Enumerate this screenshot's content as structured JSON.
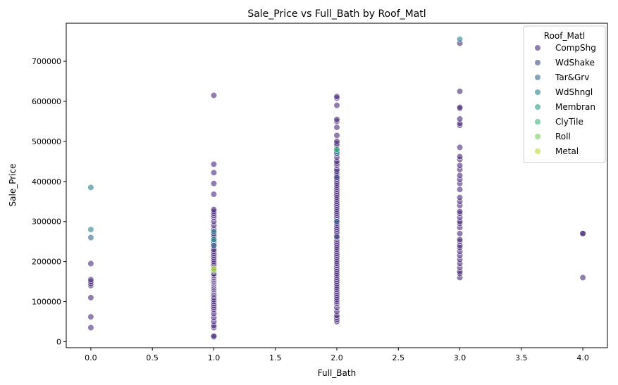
{
  "chart_data": {
    "type": "scatter",
    "title": "Sale_Price vs Full_Bath by Roof_Matl",
    "xlabel": "Full_Bath",
    "ylabel": "Sale_Price",
    "xlim": [
      -0.2,
      4.2
    ],
    "ylim": [
      -15000,
      795000
    ],
    "xticks": [
      0.0,
      0.5,
      1.0,
      1.5,
      2.0,
      2.5,
      3.0,
      3.5,
      4.0
    ],
    "xtick_labels": [
      "0.0",
      "0.5",
      "1.0",
      "1.5",
      "2.0",
      "2.5",
      "3.0",
      "3.5",
      "4.0"
    ],
    "yticks": [
      0,
      100000,
      200000,
      300000,
      400000,
      500000,
      600000,
      700000
    ],
    "ytick_labels": [
      "0",
      "100000",
      "200000",
      "300000",
      "400000",
      "500000",
      "600000",
      "700000"
    ],
    "grid": false,
    "legend": {
      "title": "Roof_Matl",
      "placement": "top-right"
    },
    "series": [
      {
        "name": "CompShg",
        "color": "#482878",
        "points": [
          [
            0,
            35000
          ],
          [
            0,
            62000
          ],
          [
            0,
            110000
          ],
          [
            0,
            140000
          ],
          [
            0,
            145000
          ],
          [
            0,
            150000
          ],
          [
            0,
            155000
          ],
          [
            0,
            195000
          ],
          [
            1,
            12000
          ],
          [
            1,
            14000
          ],
          [
            1,
            35000
          ],
          [
            1,
            40000
          ],
          [
            1,
            50000
          ],
          [
            1,
            60000
          ],
          [
            1,
            70000
          ],
          [
            1,
            80000
          ],
          [
            1,
            85000
          ],
          [
            1,
            90000
          ],
          [
            1,
            95000
          ],
          [
            1,
            100000
          ],
          [
            1,
            105000
          ],
          [
            1,
            110000
          ],
          [
            1,
            115000
          ],
          [
            1,
            118000
          ],
          [
            1,
            122000
          ],
          [
            1,
            125000
          ],
          [
            1,
            128000
          ],
          [
            1,
            130000
          ],
          [
            1,
            133000
          ],
          [
            1,
            135000
          ],
          [
            1,
            138000
          ],
          [
            1,
            140000
          ],
          [
            1,
            143000
          ],
          [
            1,
            145000
          ],
          [
            1,
            148000
          ],
          [
            1,
            150000
          ],
          [
            1,
            153000
          ],
          [
            1,
            155000
          ],
          [
            1,
            158000
          ],
          [
            1,
            160000
          ],
          [
            1,
            163000
          ],
          [
            1,
            165000
          ],
          [
            1,
            168000
          ],
          [
            1,
            170000
          ],
          [
            1,
            175000
          ],
          [
            1,
            180000
          ],
          [
            1,
            185000
          ],
          [
            1,
            190000
          ],
          [
            1,
            195000
          ],
          [
            1,
            200000
          ],
          [
            1,
            205000
          ],
          [
            1,
            210000
          ],
          [
            1,
            215000
          ],
          [
            1,
            220000
          ],
          [
            1,
            225000
          ],
          [
            1,
            230000
          ],
          [
            1,
            240000
          ],
          [
            1,
            245000
          ],
          [
            1,
            255000
          ],
          [
            1,
            260000
          ],
          [
            1,
            265000
          ],
          [
            1,
            270000
          ],
          [
            1,
            280000
          ],
          [
            1,
            290000
          ],
          [
            1,
            300000
          ],
          [
            1,
            310000
          ],
          [
            1,
            315000
          ],
          [
            1,
            320000
          ],
          [
            1,
            325000
          ],
          [
            1,
            330000
          ],
          [
            1,
            368000
          ],
          [
            1,
            395000
          ],
          [
            1,
            422000
          ],
          [
            1,
            443000
          ],
          [
            1,
            615000
          ],
          [
            2,
            50000
          ],
          [
            2,
            55000
          ],
          [
            2,
            60000
          ],
          [
            2,
            65000
          ],
          [
            2,
            75000
          ],
          [
            2,
            85000
          ],
          [
            2,
            95000
          ],
          [
            2,
            100000
          ],
          [
            2,
            105000
          ],
          [
            2,
            110000
          ],
          [
            2,
            115000
          ],
          [
            2,
            120000
          ],
          [
            2,
            125000
          ],
          [
            2,
            130000
          ],
          [
            2,
            135000
          ],
          [
            2,
            140000
          ],
          [
            2,
            145000
          ],
          [
            2,
            150000
          ],
          [
            2,
            155000
          ],
          [
            2,
            160000
          ],
          [
            2,
            165000
          ],
          [
            2,
            170000
          ],
          [
            2,
            175000
          ],
          [
            2,
            180000
          ],
          [
            2,
            185000
          ],
          [
            2,
            190000
          ],
          [
            2,
            195000
          ],
          [
            2,
            200000
          ],
          [
            2,
            205000
          ],
          [
            2,
            210000
          ],
          [
            2,
            215000
          ],
          [
            2,
            220000
          ],
          [
            2,
            225000
          ],
          [
            2,
            230000
          ],
          [
            2,
            235000
          ],
          [
            2,
            240000
          ],
          [
            2,
            245000
          ],
          [
            2,
            250000
          ],
          [
            2,
            255000
          ],
          [
            2,
            260000
          ],
          [
            2,
            265000
          ],
          [
            2,
            270000
          ],
          [
            2,
            275000
          ],
          [
            2,
            280000
          ],
          [
            2,
            285000
          ],
          [
            2,
            290000
          ],
          [
            2,
            295000
          ],
          [
            2,
            300000
          ],
          [
            2,
            305000
          ],
          [
            2,
            310000
          ],
          [
            2,
            315000
          ],
          [
            2,
            320000
          ],
          [
            2,
            325000
          ],
          [
            2,
            330000
          ],
          [
            2,
            335000
          ],
          [
            2,
            340000
          ],
          [
            2,
            345000
          ],
          [
            2,
            350000
          ],
          [
            2,
            355000
          ],
          [
            2,
            360000
          ],
          [
            2,
            365000
          ],
          [
            2,
            370000
          ],
          [
            2,
            375000
          ],
          [
            2,
            380000
          ],
          [
            2,
            385000
          ],
          [
            2,
            390000
          ],
          [
            2,
            395000
          ],
          [
            2,
            400000
          ],
          [
            2,
            405000
          ],
          [
            2,
            410000
          ],
          [
            2,
            415000
          ],
          [
            2,
            420000
          ],
          [
            2,
            425000
          ],
          [
            2,
            430000
          ],
          [
            2,
            440000
          ],
          [
            2,
            445000
          ],
          [
            2,
            450000
          ],
          [
            2,
            460000
          ],
          [
            2,
            470000
          ],
          [
            2,
            480000
          ],
          [
            2,
            490000
          ],
          [
            2,
            495000
          ],
          [
            2,
            500000
          ],
          [
            2,
            515000
          ],
          [
            2,
            535000
          ],
          [
            2,
            550000
          ],
          [
            2,
            555000
          ],
          [
            2,
            590000
          ],
          [
            2,
            608000
          ],
          [
            2,
            612000
          ],
          [
            3,
            160000
          ],
          [
            3,
            170000
          ],
          [
            3,
            175000
          ],
          [
            3,
            185000
          ],
          [
            3,
            195000
          ],
          [
            3,
            205000
          ],
          [
            3,
            215000
          ],
          [
            3,
            225000
          ],
          [
            3,
            235000
          ],
          [
            3,
            240000
          ],
          [
            3,
            250000
          ],
          [
            3,
            255000
          ],
          [
            3,
            270000
          ],
          [
            3,
            285000
          ],
          [
            3,
            295000
          ],
          [
            3,
            300000
          ],
          [
            3,
            310000
          ],
          [
            3,
            320000
          ],
          [
            3,
            325000
          ],
          [
            3,
            340000
          ],
          [
            3,
            350000
          ],
          [
            3,
            360000
          ],
          [
            3,
            380000
          ],
          [
            3,
            395000
          ],
          [
            3,
            405000
          ],
          [
            3,
            415000
          ],
          [
            3,
            430000
          ],
          [
            3,
            440000
          ],
          [
            3,
            455000
          ],
          [
            3,
            462000
          ],
          [
            3,
            485000
          ],
          [
            3,
            540000
          ],
          [
            3,
            545000
          ],
          [
            3,
            556000
          ],
          [
            3,
            582000
          ],
          [
            3,
            585000
          ],
          [
            3,
            625000
          ],
          [
            3,
            745000
          ],
          [
            4,
            160000
          ],
          [
            4,
            270000
          ],
          [
            4,
            270000
          ]
        ]
      },
      {
        "name": "WdShake",
        "color": "#3e4a89",
        "points": [
          [
            1,
            250000
          ],
          [
            2,
            262000
          ],
          [
            2,
            410000
          ]
        ]
      },
      {
        "name": "Tar&Grv",
        "color": "#31688e",
        "points": [
          [
            0,
            260000
          ],
          [
            1,
            240000
          ],
          [
            2,
            470000
          ],
          [
            2,
            300000
          ]
        ]
      },
      {
        "name": "WdShngl",
        "color": "#26828e",
        "points": [
          [
            0,
            385000
          ],
          [
            0,
            280000
          ],
          [
            1,
            275000
          ],
          [
            2,
            475000
          ],
          [
            3,
            755000
          ]
        ]
      },
      {
        "name": "Membran",
        "color": "#1f9e89",
        "points": [
          [
            1,
            255000
          ]
        ]
      },
      {
        "name": "ClyTile",
        "color": "#35b779",
        "points": [
          [
            2,
            480000
          ]
        ]
      },
      {
        "name": "Roll",
        "color": "#6ece58",
        "points": [
          [
            1,
            178000
          ]
        ]
      },
      {
        "name": "Metal",
        "color": "#b5de2b",
        "points": [
          [
            1,
            182000
          ]
        ]
      }
    ]
  }
}
